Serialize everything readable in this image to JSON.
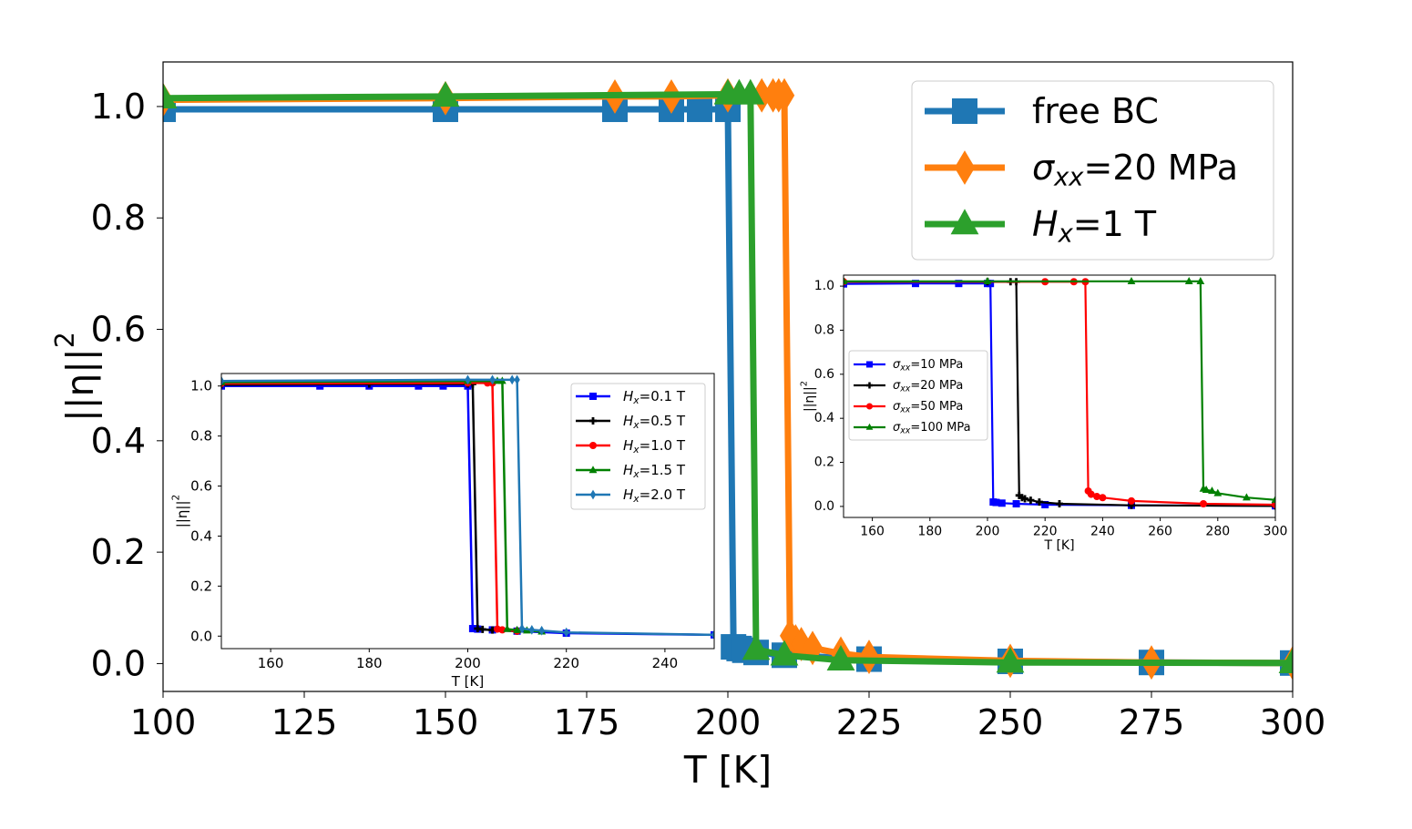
{
  "chart_data": [
    {
      "id": "main",
      "type": "line",
      "xlabel": "T [K]",
      "ylabel_base": "||η||",
      "ylabel_sup": "2",
      "xlim": [
        100,
        300
      ],
      "ylim": [
        -0.05,
        1.08
      ],
      "xticks": [
        100,
        125,
        150,
        175,
        200,
        225,
        250,
        275,
        300
      ],
      "yticks": [
        0.0,
        0.2,
        0.4,
        0.6,
        0.8,
        1.0
      ],
      "grid": false,
      "legend_position": "upper right",
      "series": [
        {
          "legend": {
            "symbol": "",
            "sub": "",
            "rest": "free BC"
          },
          "color": "#1f77b4",
          "marker": "square",
          "x": [
            100,
            150,
            180,
            190,
            195,
            200,
            201,
            202,
            203,
            205,
            210,
            225,
            250,
            275,
            300
          ],
          "y": [
            0.995,
            0.995,
            0.995,
            0.995,
            0.995,
            0.995,
            0.03,
            0.027,
            0.024,
            0.02,
            0.015,
            0.008,
            0.004,
            0.002,
            0.001
          ]
        },
        {
          "legend": {
            "symbol": "σ",
            "sub": "xx",
            "rest": "=20 MPa"
          },
          "color": "#ff7f0e",
          "marker": "diamond",
          "x": [
            100,
            150,
            180,
            190,
            200,
            206,
            208,
            209,
            210,
            211,
            212,
            213,
            215,
            220,
            225,
            250,
            275,
            300
          ],
          "y": [
            1.012,
            1.015,
            1.018,
            1.018,
            1.02,
            1.02,
            1.02,
            1.02,
            1.02,
            0.05,
            0.04,
            0.035,
            0.028,
            0.018,
            0.012,
            0.005,
            0.002,
            0.001
          ]
        },
        {
          "legend": {
            "symbol": "H",
            "sub": "x",
            "rest": "=1 T"
          },
          "color": "#2ca02c",
          "marker": "triangle",
          "x": [
            100,
            150,
            200,
            202,
            204,
            205,
            210,
            220,
            250,
            300
          ],
          "y": [
            1.015,
            1.018,
            1.022,
            1.022,
            1.022,
            0.025,
            0.015,
            0.006,
            0.002,
            0.001
          ]
        }
      ]
    },
    {
      "id": "inset_field",
      "type": "line",
      "xlabel": "T [K]",
      "ylabel_base": "||η||",
      "ylabel_sup": "2",
      "xlim": [
        150,
        250
      ],
      "ylim": [
        -0.05,
        1.05
      ],
      "xticks": [
        160,
        180,
        200,
        220,
        240
      ],
      "yticks": [
        0.0,
        0.2,
        0.4,
        0.6,
        0.8,
        1.0
      ],
      "grid": false,
      "legend_position": "upper right",
      "series": [
        {
          "legend": {
            "symbol": "H",
            "sub": "x",
            "rest": "=0.1 T"
          },
          "color": "#0000ff",
          "marker": "square",
          "x": [
            150,
            170,
            180,
            190,
            195,
            200,
            201,
            202,
            205,
            210,
            220,
            250
          ],
          "y": [
            1.0,
            1.0,
            1.0,
            1.0,
            1.0,
            1.0,
            0.03,
            0.028,
            0.025,
            0.02,
            0.012,
            0.005
          ]
        },
        {
          "legend": {
            "symbol": "H",
            "sub": "x",
            "rest": "=0.5 T"
          },
          "color": "#000000",
          "marker": "plus",
          "x": [
            150,
            180,
            200,
            201,
            202,
            203,
            205,
            210
          ],
          "y": [
            1.005,
            1.008,
            1.008,
            1.008,
            0.03,
            0.027,
            0.024,
            0.02
          ]
        },
        {
          "legend": {
            "symbol": "H",
            "sub": "x",
            "rest": "=1.0 T"
          },
          "color": "#ff0000",
          "marker": "circle",
          "x": [
            150,
            200,
            204,
            205,
            206,
            207,
            210
          ],
          "y": [
            1.01,
            1.012,
            1.012,
            1.012,
            0.028,
            0.025,
            0.02
          ]
        },
        {
          "legend": {
            "symbol": "H",
            "sub": "x",
            "rest": "=1.5 T"
          },
          "color": "#008000",
          "marker": "triangle",
          "x": [
            150,
            200,
            206,
            207,
            208,
            210,
            212,
            215
          ],
          "y": [
            1.015,
            1.02,
            1.02,
            1.02,
            0.028,
            0.024,
            0.022,
            0.018
          ]
        },
        {
          "legend": {
            "symbol": "H",
            "sub": "x",
            "rest": "=2.0 T"
          },
          "color": "#1f77b4",
          "marker": "diamond",
          "x": [
            150,
            200,
            205,
            209,
            210,
            211,
            213,
            215,
            220,
            250
          ],
          "y": [
            1.02,
            1.025,
            1.025,
            1.025,
            1.025,
            0.03,
            0.025,
            0.022,
            0.015,
            0.005
          ]
        }
      ]
    },
    {
      "id": "inset_stress",
      "type": "line",
      "xlabel": "T [K]",
      "ylabel_base": "||η||",
      "ylabel_sup": "2",
      "xlim": [
        150,
        300
      ],
      "ylim": [
        -0.05,
        1.05
      ],
      "xticks": [
        160,
        180,
        200,
        220,
        240,
        260,
        280,
        300
      ],
      "yticks": [
        0.0,
        0.2,
        0.4,
        0.6,
        0.8,
        1.0
      ],
      "grid": false,
      "legend_position": "center left",
      "series": [
        {
          "legend": {
            "symbol": "σ",
            "sub": "xx",
            "rest": "=10 MPa"
          },
          "color": "#0000ff",
          "marker": "square",
          "x": [
            150,
            175,
            190,
            200,
            201,
            202,
            203,
            205,
            210,
            220,
            250,
            300
          ],
          "y": [
            1.01,
            1.012,
            1.012,
            1.012,
            1.012,
            0.02,
            0.018,
            0.015,
            0.012,
            0.008,
            0.005,
            0.003
          ]
        },
        {
          "legend": {
            "symbol": "σ",
            "sub": "xx",
            "rest": "=20 MPa"
          },
          "color": "#000000",
          "marker": "plus",
          "x": [
            150,
            200,
            208,
            210,
            211,
            212,
            213,
            215,
            218,
            225,
            250,
            300
          ],
          "y": [
            1.02,
            1.02,
            1.02,
            1.02,
            0.05,
            0.04,
            0.035,
            0.028,
            0.02,
            0.012,
            0.005,
            0.002
          ]
        },
        {
          "legend": {
            "symbol": "σ",
            "sub": "xx",
            "rest": "=50 MPa"
          },
          "color": "#ff0000",
          "marker": "circle",
          "x": [
            150,
            220,
            230,
            234,
            235,
            236,
            238,
            240,
            250,
            275,
            300
          ],
          "y": [
            1.02,
            1.02,
            1.02,
            1.02,
            0.07,
            0.055,
            0.045,
            0.04,
            0.025,
            0.012,
            0.008
          ]
        },
        {
          "legend": {
            "symbol": "σ",
            "sub": "xx",
            "rest": "=100 MPa"
          },
          "color": "#008000",
          "marker": "triangle",
          "x": [
            150,
            200,
            250,
            270,
            274,
            275,
            276,
            278,
            280,
            290,
            300
          ],
          "y": [
            1.022,
            1.022,
            1.022,
            1.022,
            1.022,
            0.08,
            0.075,
            0.07,
            0.06,
            0.04,
            0.03
          ]
        }
      ]
    }
  ]
}
